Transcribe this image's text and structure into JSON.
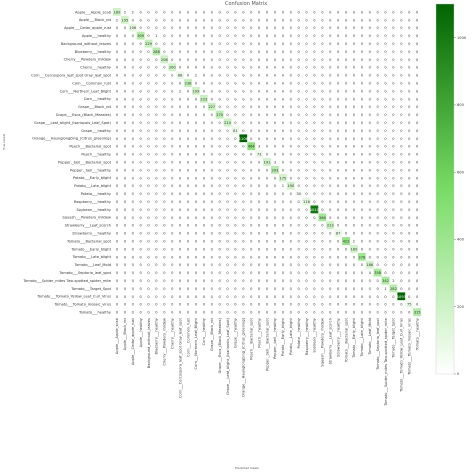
{
  "chart_data": {
    "type": "heatmap",
    "title": "Confusion Matrix",
    "xlabel": "Predicted labels",
    "ylabel": "True labels",
    "labels": [
      "Apple___Apple_scab",
      "Apple___Black_rot",
      "Apple___Cedar_apple_rust",
      "Apple___healthy",
      "Background_without_leaves",
      "Blueberry___healthy",
      "Cherry___Powdery_mildew",
      "Cherry___healthy",
      "Corn___Cercospora_leaf_spot Gray_leaf_spot",
      "Corn___Common_rust",
      "Corn___Northern_Leaf_Blight",
      "Corn___healthy",
      "Grape___Black_rot",
      "Grape___Esca_(Black_Measles)",
      "Grape___Leaf_blight_(Isariopsis_Leaf_Spot)",
      "Grape___healthy",
      "Orange___Haunglongbing_(Citrus_greening)",
      "Peach___Bacterial_spot",
      "Peach___healthy",
      "Pepper,_bell___Bacterial_spot",
      "Pepper,_bell___healthy",
      "Potato___Early_blight",
      "Potato___Late_blight",
      "Potato___healthy",
      "Raspberry___healthy",
      "Soybean___healthy",
      "Squash___Powdery_mildew",
      "Strawberry___Leaf_scorch",
      "Strawberry___healthy",
      "Tomato___Bacterial_spot",
      "Tomato___Early_blight",
      "Tomato___Late_blight",
      "Tomato___Leaf_Mold",
      "Tomato___Septoria_leaf_spot",
      "Tomato___Spider_mites Two-spotted_spider_mite",
      "Tomato___Target_Spot",
      "Tomato___Tomato_Yellow_Leaf_Curl_Virus",
      "Tomato___Tomato_mosaic_virus",
      "Tomato___healthy"
    ],
    "diagonal": [
      189,
      195,
      106,
      309,
      229,
      288,
      206,
      200,
      88,
      238,
      199,
      223,
      227,
      270,
      214,
      81,
      1106,
      464,
      73,
      191,
      293,
      175,
      190,
      30,
      116,
      1010,
      366,
      213,
      87,
      422,
      189,
      378,
      186,
      358,
      342,
      282,
      1093,
      75,
      315
    ],
    "off_diagonal": [
      {
        "row": 0,
        "col": 1,
        "value": 2
      },
      {
        "row": 0,
        "col": 2,
        "value": 2
      },
      {
        "row": 1,
        "col": 0,
        "value": 2
      },
      {
        "row": 3,
        "col": 5,
        "value": 1
      },
      {
        "row": 8,
        "col": 10,
        "value": 2
      },
      {
        "row": 10,
        "col": 8,
        "value": 2
      },
      {
        "row": 17,
        "col": 18,
        "value": 3
      },
      {
        "row": 19,
        "col": 20,
        "value": 3
      },
      {
        "row": 22,
        "col": 21,
        "value": 1
      },
      {
        "row": 29,
        "col": 30,
        "value": 2
      },
      {
        "row": 33,
        "col": 32,
        "value": 4
      },
      {
        "row": 34,
        "col": 35,
        "value": 2
      },
      {
        "row": 35,
        "col": 34,
        "value": 1
      }
    ],
    "colorbar": {
      "min": 0,
      "max": 1100,
      "ticks": [
        0,
        200,
        400,
        600,
        800,
        1000
      ]
    },
    "colors": {
      "low": "#ffffff",
      "high": "#006400"
    }
  }
}
